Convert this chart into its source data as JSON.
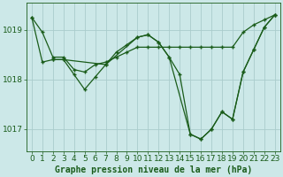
{
  "background_color": "#cce8e8",
  "plot_bg_color": "#cce8e8",
  "grid_color": "#aacccc",
  "line_color": "#1a5c1a",
  "marker_color": "#1a5c1a",
  "title": "Graphe pression niveau de la mer (hPa)",
  "yticks": [
    1017,
    1018,
    1019
  ],
  "xlim": [
    -0.5,
    23.5
  ],
  "ylim": [
    1016.55,
    1019.55
  ],
  "lines": [
    {
      "x": [
        0,
        1,
        2,
        3,
        4,
        5,
        6,
        7,
        8,
        9,
        10,
        11,
        12,
        13,
        14,
        15,
        16,
        17,
        18,
        19,
        20,
        21,
        22,
        23
      ],
      "y": [
        1019.25,
        1018.95,
        1018.45,
        1018.45,
        1018.2,
        1018.15,
        1018.3,
        1018.35,
        1018.45,
        1018.55,
        1018.65,
        1018.65,
        1018.65,
        1018.65,
        1018.65,
        1018.65,
        1018.65,
        1018.65,
        1018.65,
        1018.65,
        1018.95,
        1019.1,
        1019.2,
        1019.3
      ]
    },
    {
      "x": [
        0,
        1,
        2,
        3,
        4,
        5,
        6,
        7,
        8,
        9,
        10,
        11,
        12,
        13,
        14,
        15,
        16,
        17,
        18,
        19,
        20,
        21,
        22,
        23
      ],
      "y": [
        1019.25,
        1018.35,
        1018.4,
        1018.4,
        1018.1,
        1017.8,
        1018.05,
        1018.3,
        1018.55,
        1018.7,
        1018.85,
        1018.9,
        1018.75,
        1018.45,
        1018.1,
        1016.9,
        1016.8,
        1017.0,
        1017.35,
        1017.2,
        1018.15,
        1018.6,
        1019.05,
        1019.3
      ]
    },
    {
      "x": [
        2,
        3,
        7,
        10,
        11,
        12,
        13,
        15,
        16,
        17,
        18,
        19,
        20,
        21,
        22,
        23
      ],
      "y": [
        1018.4,
        1018.4,
        1018.3,
        1018.85,
        1018.9,
        1018.75,
        1018.45,
        1016.9,
        1016.8,
        1017.0,
        1017.35,
        1017.2,
        1018.15,
        1018.6,
        1019.05,
        1019.3
      ]
    }
  ],
  "tick_fontsize": 6.5,
  "title_fontsize": 7,
  "lw": 0.9,
  "marker_size": 3.5,
  "marker_lw": 1.0
}
